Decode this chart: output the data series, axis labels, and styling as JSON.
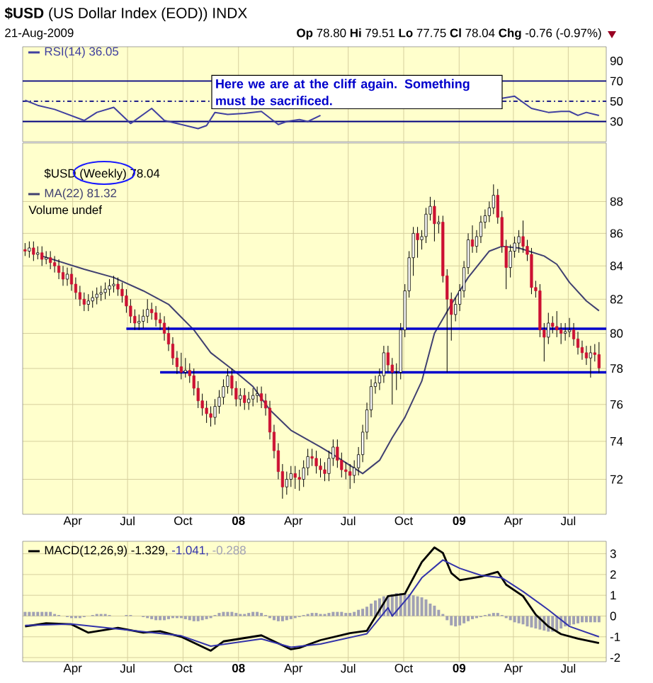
{
  "chart_data": [
    {
      "type": "line",
      "title": "**$USD** (US Dollar Index (EOD)) INDX",
      "subtitle": "21-Aug-2009",
      "annotations": [
        "**Op** 78.80  **Hi** 79.51  **Lo** 77.75  **Cl** 78.04  **Chg** -0.76 (-0.97%)",
        "Here we are at the cliff again. Something must be sacrificed."
      ],
      "xlim": [
        "2007-01-08",
        "2009-09-02"
      ],
      "ylim": [
        10,
        104
      ],
      "yticks": [
        30,
        50,
        70,
        90
      ],
      "xticks": [
        {
          "value": "2007-04-01",
          "label": null
        },
        {
          "value": "2007-07-01",
          "label": null
        },
        {
          "value": "2007-10-01",
          "label": null
        },
        {
          "value": "2008-01-01",
          "label": null
        },
        {
          "value": "2008-04-01",
          "label": null
        },
        {
          "value": "2008-07-01",
          "label": null
        },
        {
          "value": "2008-10-01",
          "label": null
        },
        {
          "value": "2009-01-01",
          "label": null
        },
        {
          "value": "2009-04-01",
          "label": null
        },
        {
          "value": "2009-07-01",
          "label": null
        }
      ],
      "tick_labels": "y",
      "grid": "x",
      "legend": "top left",
      "ref_lines": [
        {
          "axis": "y",
          "value": 70,
          "color": "#000080"
        },
        {
          "axis": "y",
          "value": 30,
          "color": "#000080"
        },
        {
          "axis": "y",
          "value": 50,
          "color": "#000080",
          "line_style": "dashed"
        }
      ],
      "series": [
        {
          "name": "RSI(14) 36.05",
          "color": "#4040a0",
          "x": [
            "2007-01-12",
            "2007-02-02",
            "2007-03-02",
            "2007-04-20",
            "2007-05-11",
            "2007-06-08",
            "2007-07-06",
            "2007-08-10",
            "2007-08-31",
            "2007-09-21",
            "2007-10-26",
            "2007-11-09",
            "2007-11-23",
            "2007-12-14",
            "2008-01-11",
            "2008-02-08",
            "2008-03-07",
            "2008-03-21",
            "2008-04-11",
            "2008-04-25",
            "2008-05-16",
            "2008-05-30",
            "2009-03-13",
            "2009-04-03",
            "2009-05-01",
            "2009-05-29",
            "2009-06-19",
            "2009-07-03",
            "2009-07-17",
            "2009-07-31",
            "2009-08-21"
          ],
          "values": [
            51,
            46,
            42,
            31,
            39,
            44,
            28,
            43,
            31,
            28,
            23,
            26,
            39,
            37,
            38,
            40,
            27,
            30,
            32,
            30,
            36,
            null,
            53,
            55,
            43,
            39,
            40,
            40,
            36,
            39,
            36
          ]
        }
      ]
    },
    {
      "type": "candlestick",
      "log": "y",
      "grid": true,
      "legend": "top left",
      "annotations": [
        "$USD (Weekly) 78.04",
        "Volume undef"
      ],
      "xlim": [
        "2007-01-08",
        "2009-09-02"
      ],
      "ylim": [
        70.2,
        91.8
      ],
      "yticks": [
        72,
        74,
        76,
        78,
        80,
        82,
        84,
        86,
        88
      ],
      "xticks": [
        {
          "value": "2007-04-01",
          "label": "Apr"
        },
        {
          "value": "2007-07-01",
          "label": "Jul"
        },
        {
          "value": "2007-10-01",
          "label": "Oct"
        },
        {
          "value": "2008-01-01",
          "label": "**08**"
        },
        {
          "value": "2008-04-01",
          "label": "Apr"
        },
        {
          "value": "2008-07-01",
          "label": "Jul"
        },
        {
          "value": "2008-10-01",
          "label": "Oct"
        },
        {
          "value": "2009-01-01",
          "label": "**09**"
        },
        {
          "value": "2009-04-01",
          "label": "Apr"
        },
        {
          "value": "2009-07-01",
          "label": "Jul"
        }
      ],
      "x": [
        "2007-01-12",
        "2007-01-19",
        "2007-01-26",
        "2007-02-02",
        "2007-02-09",
        "2007-02-16",
        "2007-02-23",
        "2007-03-02",
        "2007-03-09",
        "2007-03-16",
        "2007-03-23",
        "2007-03-30",
        "2007-04-06",
        "2007-04-13",
        "2007-04-20",
        "2007-04-27",
        "2007-05-04",
        "2007-05-11",
        "2007-05-18",
        "2007-05-25",
        "2007-06-01",
        "2007-06-08",
        "2007-06-15",
        "2007-06-22",
        "2007-06-29",
        "2007-07-06",
        "2007-07-13",
        "2007-07-20",
        "2007-07-27",
        "2007-08-03",
        "2007-08-10",
        "2007-08-17",
        "2007-08-24",
        "2007-08-31",
        "2007-09-07",
        "2007-09-14",
        "2007-09-21",
        "2007-09-28",
        "2007-10-05",
        "2007-10-12",
        "2007-10-19",
        "2007-10-26",
        "2007-11-02",
        "2007-11-09",
        "2007-11-16",
        "2007-11-23",
        "2007-11-30",
        "2007-12-07",
        "2007-12-14",
        "2007-12-21",
        "2007-12-28",
        "2008-01-04",
        "2008-01-11",
        "2008-01-18",
        "2008-01-25",
        "2008-02-01",
        "2008-02-08",
        "2008-02-15",
        "2008-02-22",
        "2008-02-29",
        "2008-03-07",
        "2008-03-14",
        "2008-03-21",
        "2008-03-28",
        "2008-04-04",
        "2008-04-11",
        "2008-04-18",
        "2008-04-25",
        "2008-05-02",
        "2008-05-09",
        "2008-05-16",
        "2008-05-23",
        "2008-05-30",
        "2008-06-06",
        "2008-06-13",
        "2008-06-20",
        "2008-06-27",
        "2008-07-04",
        "2008-07-11",
        "2008-07-18",
        "2008-07-25",
        "2008-08-01",
        "2008-08-08",
        "2008-08-15",
        "2008-08-22",
        "2008-08-29",
        "2008-09-05",
        "2008-09-12",
        "2008-09-19",
        "2008-09-26",
        "2008-10-03",
        "2008-10-10",
        "2008-10-17",
        "2008-10-24",
        "2008-10-31",
        "2008-11-07",
        "2008-11-14",
        "2008-11-21",
        "2008-11-28",
        "2008-12-05",
        "2008-12-12",
        "2008-12-19",
        "2008-12-26",
        "2009-01-02",
        "2009-01-09",
        "2009-01-16",
        "2009-01-23",
        "2009-01-30",
        "2009-02-06",
        "2009-02-13",
        "2009-02-20",
        "2009-02-27",
        "2009-03-06",
        "2009-03-13",
        "2009-03-20",
        "2009-03-27",
        "2009-04-03",
        "2009-04-10",
        "2009-04-17",
        "2009-04-24",
        "2009-05-01",
        "2009-05-08",
        "2009-05-15",
        "2009-05-22",
        "2009-05-29",
        "2009-06-05",
        "2009-06-12",
        "2009-06-19",
        "2009-06-26",
        "2009-07-03",
        "2009-07-10",
        "2009-07-17",
        "2009-07-24",
        "2009-07-31",
        "2009-08-07",
        "2009-08-14",
        "2009-08-21"
      ],
      "ohlc": [
        [
          85.0,
          85.4,
          84.6,
          84.9
        ],
        [
          84.9,
          85.5,
          84.5,
          85.1
        ],
        [
          85.1,
          85.5,
          84.3,
          84.7
        ],
        [
          84.7,
          85.2,
          84.4,
          84.8
        ],
        [
          84.8,
          85.2,
          84.0,
          84.4
        ],
        [
          84.4,
          84.9,
          84.1,
          84.5
        ],
        [
          84.5,
          84.9,
          83.8,
          84.2
        ],
        [
          84.2,
          84.6,
          83.6,
          84.0
        ],
        [
          84.0,
          84.4,
          83.2,
          83.6
        ],
        [
          83.6,
          84.0,
          82.8,
          83.2
        ],
        [
          83.2,
          83.9,
          82.8,
          83.5
        ],
        [
          83.5,
          83.9,
          82.5,
          82.9
        ],
        [
          82.9,
          83.3,
          82.0,
          82.4
        ],
        [
          82.4,
          82.8,
          81.6,
          82.0
        ],
        [
          82.0,
          82.4,
          81.3,
          81.7
        ],
        [
          81.7,
          82.3,
          81.3,
          81.9
        ],
        [
          81.9,
          82.5,
          81.5,
          82.1
        ],
        [
          82.1,
          82.7,
          81.7,
          82.3
        ],
        [
          82.3,
          82.8,
          81.9,
          82.4
        ],
        [
          82.4,
          83.0,
          82.0,
          82.6
        ],
        [
          82.6,
          83.2,
          82.2,
          82.8
        ],
        [
          82.8,
          83.4,
          82.4,
          82.9
        ],
        [
          82.9,
          83.3,
          82.2,
          82.6
        ],
        [
          82.6,
          83.0,
          81.8,
          82.2
        ],
        [
          82.2,
          82.6,
          81.2,
          81.6
        ],
        [
          81.6,
          82.0,
          80.6,
          81.0
        ],
        [
          81.0,
          81.4,
          80.2,
          80.6
        ],
        [
          80.6,
          81.1,
          80.2,
          80.7
        ],
        [
          80.7,
          81.4,
          80.3,
          81.0
        ],
        [
          81.0,
          82.0,
          80.6,
          81.4
        ],
        [
          81.4,
          81.8,
          80.8,
          81.2
        ],
        [
          81.2,
          81.6,
          80.4,
          80.8
        ],
        [
          80.8,
          81.2,
          80.2,
          80.6
        ],
        [
          80.6,
          81.0,
          79.6,
          80.0
        ],
        [
          80.0,
          80.4,
          79.0,
          79.4
        ],
        [
          79.4,
          79.8,
          78.2,
          78.6
        ],
        [
          78.6,
          79.0,
          77.7,
          78.1
        ],
        [
          78.1,
          78.9,
          77.4,
          77.8
        ],
        [
          77.8,
          78.6,
          77.5,
          77.9
        ],
        [
          77.9,
          78.3,
          77.2,
          77.6
        ],
        [
          77.6,
          78.0,
          76.5,
          76.9
        ],
        [
          76.9,
          77.3,
          75.8,
          76.2
        ],
        [
          76.2,
          76.6,
          75.4,
          75.8
        ],
        [
          75.8,
          76.2,
          75.0,
          75.5
        ],
        [
          75.5,
          75.9,
          74.8,
          75.3
        ],
        [
          75.3,
          76.3,
          74.9,
          75.9
        ],
        [
          75.9,
          76.8,
          75.5,
          76.4
        ],
        [
          76.4,
          77.4,
          76.0,
          77.0
        ],
        [
          77.0,
          78.0,
          76.6,
          77.6
        ],
        [
          77.6,
          78.0,
          76.5,
          76.9
        ],
        [
          76.9,
          77.3,
          75.9,
          76.3
        ],
        [
          76.3,
          76.9,
          75.9,
          76.5
        ],
        [
          76.5,
          76.9,
          75.7,
          76.1
        ],
        [
          76.1,
          76.7,
          75.7,
          76.3
        ],
        [
          76.3,
          76.9,
          75.9,
          76.5
        ],
        [
          76.5,
          77.0,
          76.1,
          76.6
        ],
        [
          76.6,
          77.0,
          75.8,
          76.2
        ],
        [
          76.2,
          76.6,
          75.4,
          75.8
        ],
        [
          75.8,
          76.2,
          74.1,
          74.5
        ],
        [
          74.5,
          74.9,
          73.1,
          73.5
        ],
        [
          73.5,
          73.9,
          72.0,
          72.4
        ],
        [
          72.4,
          72.8,
          71.0,
          71.6
        ],
        [
          71.6,
          72.4,
          71.2,
          72.0
        ],
        [
          72.0,
          72.7,
          71.6,
          72.3
        ],
        [
          72.3,
          72.7,
          71.5,
          72.1
        ],
        [
          72.1,
          72.5,
          71.4,
          72.0
        ],
        [
          72.0,
          73.0,
          71.6,
          72.6
        ],
        [
          72.6,
          73.6,
          72.2,
          73.2
        ],
        [
          73.2,
          73.6,
          72.7,
          73.1
        ],
        [
          73.1,
          73.5,
          72.3,
          72.7
        ],
        [
          72.7,
          73.1,
          72.1,
          72.5
        ],
        [
          72.5,
          72.9,
          71.9,
          72.3
        ],
        [
          72.3,
          73.5,
          71.9,
          73.1
        ],
        [
          73.1,
          74.1,
          72.7,
          73.7
        ],
        [
          73.7,
          74.1,
          72.6,
          73.0
        ],
        [
          73.0,
          73.4,
          72.1,
          72.5
        ],
        [
          72.5,
          72.9,
          72.0,
          72.4
        ],
        [
          72.4,
          72.8,
          71.5,
          72.2
        ],
        [
          72.2,
          73.0,
          71.8,
          72.6
        ],
        [
          72.6,
          73.7,
          72.2,
          73.3
        ],
        [
          73.3,
          74.9,
          72.9,
          74.5
        ],
        [
          74.5,
          76.1,
          74.1,
          75.7
        ],
        [
          75.7,
          77.4,
          75.3,
          77.0
        ],
        [
          77.0,
          77.6,
          76.6,
          77.2
        ],
        [
          77.2,
          78.0,
          76.8,
          77.6
        ],
        [
          77.6,
          79.3,
          77.2,
          78.9
        ],
        [
          78.9,
          79.3,
          77.8,
          78.2
        ],
        [
          78.2,
          78.6,
          76.0,
          77.8
        ],
        [
          77.8,
          78.3,
          76.8,
          77.8
        ],
        [
          77.8,
          80.6,
          77.4,
          80.2
        ],
        [
          80.2,
          82.9,
          79.8,
          82.5
        ],
        [
          82.5,
          84.9,
          82.1,
          84.5
        ],
        [
          84.5,
          86.4,
          83.4,
          86.0
        ],
        [
          86.0,
          86.4,
          84.5,
          85.6
        ],
        [
          85.6,
          86.2,
          85.0,
          85.8
        ],
        [
          85.8,
          87.6,
          85.4,
          87.2
        ],
        [
          87.2,
          88.3,
          86.8,
          87.7
        ],
        [
          87.7,
          88.1,
          85.5,
          86.6
        ],
        [
          86.6,
          87.1,
          86.0,
          86.7
        ],
        [
          86.7,
          87.1,
          83.0,
          83.4
        ],
        [
          83.4,
          83.8,
          77.8,
          82.0
        ],
        [
          82.0,
          82.4,
          79.6,
          81.1
        ],
        [
          81.1,
          82.1,
          80.7,
          81.7
        ],
        [
          81.7,
          82.9,
          81.3,
          82.5
        ],
        [
          82.5,
          84.3,
          82.1,
          83.9
        ],
        [
          83.9,
          86.0,
          83.5,
          85.6
        ],
        [
          85.6,
          86.5,
          84.8,
          85.2
        ],
        [
          85.2,
          86.2,
          84.8,
          85.8
        ],
        [
          85.8,
          87.1,
          85.4,
          86.7
        ],
        [
          86.7,
          87.5,
          86.3,
          87.1
        ],
        [
          87.1,
          88.0,
          86.7,
          87.6
        ],
        [
          87.6,
          89.1,
          87.2,
          88.4
        ],
        [
          88.4,
          88.8,
          86.6,
          87.0
        ],
        [
          87.0,
          87.4,
          84.8,
          85.2
        ],
        [
          85.2,
          85.6,
          82.6,
          83.9
        ],
        [
          83.9,
          85.3,
          83.3,
          84.9
        ],
        [
          84.9,
          85.8,
          84.5,
          85.4
        ],
        [
          85.4,
          86.2,
          84.8,
          85.8
        ],
        [
          85.8,
          86.8,
          84.8,
          85.2
        ],
        [
          85.2,
          85.6,
          84.3,
          84.7
        ],
        [
          84.7,
          85.1,
          82.3,
          82.7
        ],
        [
          82.7,
          83.1,
          82.1,
          82.5
        ],
        [
          82.5,
          82.9,
          79.8,
          80.2
        ],
        [
          80.2,
          80.6,
          78.4,
          79.8
        ],
        [
          79.8,
          81.2,
          79.4,
          80.6
        ],
        [
          80.6,
          81.0,
          80.0,
          80.4
        ],
        [
          80.4,
          81.3,
          79.8,
          80.2
        ],
        [
          80.2,
          80.6,
          79.4,
          80.0
        ],
        [
          80.0,
          80.6,
          79.6,
          80.1
        ],
        [
          80.1,
          80.9,
          79.8,
          80.2
        ],
        [
          80.2,
          80.6,
          79.3,
          79.7
        ],
        [
          79.7,
          80.1,
          78.8,
          79.2
        ],
        [
          79.2,
          79.6,
          78.5,
          78.9
        ],
        [
          78.9,
          79.3,
          78.2,
          78.6
        ],
        [
          78.6,
          79.3,
          77.5,
          78.9
        ],
        [
          78.9,
          79.4,
          78.4,
          78.8
        ],
        [
          78.8,
          79.51,
          77.75,
          78.04
        ]
      ],
      "series": [
        {
          "type": "line",
          "name": "MA(22) 81.32",
          "color": "#404070",
          "x": [
            "2007-02-09",
            "2007-04-20",
            "2007-06-08",
            "2007-07-27",
            "2007-09-07",
            "2007-10-19",
            "2007-11-16",
            "2007-12-28",
            "2008-01-25",
            "2008-02-22",
            "2008-03-28",
            "2008-05-16",
            "2008-06-06",
            "2008-07-25",
            "2008-08-22",
            "2008-09-12",
            "2008-10-03",
            "2008-10-31",
            "2008-11-21",
            "2008-12-19",
            "2009-01-16",
            "2009-02-20",
            "2009-03-13",
            "2009-04-10",
            "2009-05-22",
            "2009-06-12",
            "2009-07-03",
            "2009-07-31",
            "2009-08-21"
          ],
          "values": [
            84.6,
            83.8,
            83.3,
            82.5,
            81.7,
            80.2,
            78.9,
            77.8,
            77.0,
            75.7,
            74.6,
            73.7,
            73.3,
            72.3,
            73.0,
            74.2,
            75.3,
            77.3,
            80.0,
            81.7,
            83.3,
            84.9,
            85.2,
            85.1,
            84.6,
            84.1,
            83.0,
            81.9,
            81.32
          ]
        },
        {
          "type": "line",
          "color": "#0000cc",
          "x": [
            "2007-06-29",
            "2009-09-02"
          ],
          "values": [
            80.27,
            80.27
          ]
        },
        {
          "type": "line",
          "color": "#0000cc",
          "x": [
            "2007-08-24",
            "2009-09-02"
          ],
          "values": [
            77.8,
            77.8
          ]
        }
      ]
    },
    {
      "type": "line",
      "grid": true,
      "legend": "top left",
      "xlim": [
        "2007-01-08",
        "2009-09-02"
      ],
      "ylim": [
        -2.2,
        3.6
      ],
      "yticks": [
        -2,
        -1,
        0,
        1,
        2,
        3
      ],
      "xticks": [
        {
          "value": "2007-04-01",
          "label": "Apr"
        },
        {
          "value": "2007-07-01",
          "label": "Jul"
        },
        {
          "value": "2007-10-01",
          "label": "Oct"
        },
        {
          "value": "2008-01-01",
          "label": "**08**"
        },
        {
          "value": "2008-04-01",
          "label": "Apr"
        },
        {
          "value": "2008-07-01",
          "label": "Jul"
        },
        {
          "value": "2008-10-01",
          "label": "Oct"
        },
        {
          "value": "2009-01-01",
          "label": "**09**"
        },
        {
          "value": "2009-04-01",
          "label": "Apr"
        },
        {
          "value": "2009-07-01",
          "label": "Jul"
        }
      ],
      "x": [
        "2007-01-12",
        "2007-01-19",
        "2007-01-26",
        "2007-02-02",
        "2007-02-09",
        "2007-02-16",
        "2007-02-23",
        "2007-03-02",
        "2007-03-09",
        "2007-03-16",
        "2007-03-23",
        "2007-03-30",
        "2007-04-06",
        "2007-04-13",
        "2007-04-20",
        "2007-04-27",
        "2007-05-04",
        "2007-05-11",
        "2007-05-18",
        "2007-05-25",
        "2007-06-01",
        "2007-06-08",
        "2007-06-15",
        "2007-06-22",
        "2007-06-29",
        "2007-07-06",
        "2007-07-13",
        "2007-07-20",
        "2007-07-27",
        "2007-08-03",
        "2007-08-10",
        "2007-08-17",
        "2007-08-24",
        "2007-08-31",
        "2007-09-07",
        "2007-09-14",
        "2007-09-21",
        "2007-09-28",
        "2007-10-05",
        "2007-10-12",
        "2007-10-19",
        "2007-10-26",
        "2007-11-02",
        "2007-11-09",
        "2007-11-16",
        "2007-11-23",
        "2007-11-30",
        "2007-12-07",
        "2007-12-14",
        "2007-12-21",
        "2007-12-28",
        "2008-01-04",
        "2008-01-11",
        "2008-01-18",
        "2008-01-25",
        "2008-02-01",
        "2008-02-08",
        "2008-02-15",
        "2008-02-22",
        "2008-02-29",
        "2008-03-07",
        "2008-03-14",
        "2008-03-21",
        "2008-03-28",
        "2008-04-04",
        "2008-04-11",
        "2008-04-18",
        "2008-04-25",
        "2008-05-02",
        "2008-05-09",
        "2008-05-16",
        "2008-05-23",
        "2008-05-30",
        "2008-06-06",
        "2008-06-13",
        "2008-06-20",
        "2008-06-27",
        "2008-07-04",
        "2008-07-11",
        "2008-07-18",
        "2008-07-25",
        "2008-08-01",
        "2008-08-08",
        "2008-08-15",
        "2008-08-22",
        "2008-08-29",
        "2008-09-05",
        "2008-09-12",
        "2008-09-19",
        "2008-09-26",
        "2008-10-03",
        "2008-10-10",
        "2008-10-17",
        "2008-10-24",
        "2008-10-31",
        "2008-11-07",
        "2008-11-14",
        "2008-11-21",
        "2008-11-28",
        "2008-12-05",
        "2008-12-12",
        "2008-12-19",
        "2008-12-26",
        "2009-01-02",
        "2009-01-09",
        "2009-01-16",
        "2009-01-23",
        "2009-01-30",
        "2009-02-06",
        "2009-02-13",
        "2009-02-20",
        "2009-02-27",
        "2009-03-06",
        "2009-03-13",
        "2009-03-20",
        "2009-03-27",
        "2009-04-03",
        "2009-04-10",
        "2009-04-17",
        "2009-04-24",
        "2009-05-01",
        "2009-05-08",
        "2009-05-15",
        "2009-05-22",
        "2009-05-29",
        "2009-06-05",
        "2009-06-12",
        "2009-06-19",
        "2009-06-26",
        "2009-07-03",
        "2009-07-10",
        "2009-07-17",
        "2009-07-24",
        "2009-07-31",
        "2009-08-07",
        "2009-08-14",
        "2009-08-21"
      ],
      "series": [
        {
          "name": "MACD(12,26,9) -1.329,",
          "color": "#000000",
          "x": [
            "2007-01-12",
            "2007-02-16",
            "2007-03-30",
            "2007-04-27",
            "2007-06-15",
            "2007-07-27",
            "2007-08-24",
            "2007-09-28",
            "2007-11-16",
            "2007-12-07",
            "2008-02-08",
            "2008-03-28",
            "2008-04-11",
            "2008-05-16",
            "2008-07-04",
            "2008-08-01",
            "2008-09-05",
            "2008-10-03",
            "2008-10-31",
            "2008-11-21",
            "2008-12-05",
            "2008-12-19",
            "2009-01-02",
            "2009-02-06",
            "2009-03-06",
            "2009-03-20",
            "2009-04-17",
            "2009-05-08",
            "2009-05-29",
            "2009-06-19",
            "2009-07-17",
            "2009-08-21"
          ],
          "values": [
            -0.5,
            -0.35,
            -0.4,
            -0.8,
            -0.57,
            -0.8,
            -0.73,
            -1.0,
            -1.67,
            -1.22,
            -0.93,
            -1.6,
            -1.53,
            -1.16,
            -0.82,
            -0.71,
            0.96,
            1.07,
            2.6,
            3.3,
            3.04,
            2.07,
            1.73,
            1.9,
            2.13,
            1.51,
            0.96,
            0.07,
            -0.5,
            -0.87,
            -1.09,
            -1.3
          ]
        },
        {
          "name": "-1.041,",
          "color": "#3333aa",
          "x": [
            "2007-01-12",
            "2007-03-30",
            "2007-06-15",
            "2007-09-28",
            "2007-11-16",
            "2008-02-08",
            "2008-03-28",
            "2008-05-16",
            "2008-08-01",
            "2008-09-05",
            "2008-09-12",
            "2008-10-10",
            "2008-10-31",
            "2008-12-05",
            "2009-01-02",
            "2009-02-06",
            "2009-03-13",
            "2009-04-17",
            "2009-05-29",
            "2009-07-03",
            "2009-08-21"
          ],
          "values": [
            -0.45,
            -0.38,
            -0.62,
            -0.95,
            -1.45,
            -1.1,
            -1.5,
            -1.35,
            -0.85,
            0.4,
            0.0,
            0.96,
            1.84,
            2.7,
            2.3,
            1.96,
            1.84,
            1.18,
            0.3,
            -0.5,
            -1.0
          ]
        },
        {
          "name": "-0.288",
          "type": "bar",
          "color": "#a0a0b4",
          "values": [
            0.2,
            0.2,
            0.2,
            0.2,
            0.2,
            0.2,
            0.2,
            0.1,
            0.05,
            0,
            -0.05,
            -0.1,
            -0.1,
            -0.1,
            -0.05,
            0,
            0.05,
            0.1,
            0.1,
            0.1,
            0.05,
            0,
            0,
            0,
            0.05,
            0.05,
            0,
            0,
            -0.05,
            -0.1,
            -0.15,
            -0.2,
            -0.2,
            -0.2,
            -0.15,
            -0.1,
            -0.1,
            -0.1,
            -0.15,
            -0.2,
            -0.25,
            -0.25,
            -0.2,
            -0.15,
            -0.1,
            0.05,
            0.15,
            0.2,
            0.2,
            0.2,
            0.15,
            0.1,
            0.1,
            0.15,
            0.2,
            0.2,
            0.15,
            0.05,
            -0.1,
            -0.2,
            -0.25,
            -0.25,
            -0.2,
            -0.15,
            -0.1,
            -0.05,
            0.05,
            0.1,
            0.15,
            0.15,
            0.1,
            0.1,
            0.15,
            0.2,
            0.2,
            0.2,
            0.15,
            0.15,
            0.2,
            0.3,
            0.35,
            0.45,
            0.6,
            0.75,
            0.85,
            0.95,
            1.0,
            1.05,
            1.1,
            1.1,
            1.1,
            1.05,
            1.0,
            0.95,
            0.9,
            0.8,
            0.6,
            0.5,
            0.3,
            0.1,
            -0.2,
            -0.45,
            -0.5,
            -0.45,
            -0.35,
            -0.25,
            -0.15,
            -0.1,
            -0.05,
            0.05,
            0.1,
            0.15,
            0.15,
            0.05,
            -0.1,
            -0.2,
            -0.3,
            -0.35,
            -0.4,
            -0.5,
            -0.55,
            -0.6,
            -0.65,
            -0.7,
            -0.75,
            -0.75,
            -0.7,
            -0.6,
            -0.5,
            -0.45,
            -0.4,
            -0.35,
            -0.3,
            -0.3,
            -0.3,
            -0.3,
            -0.3
          ]
        }
      ]
    }
  ]
}
